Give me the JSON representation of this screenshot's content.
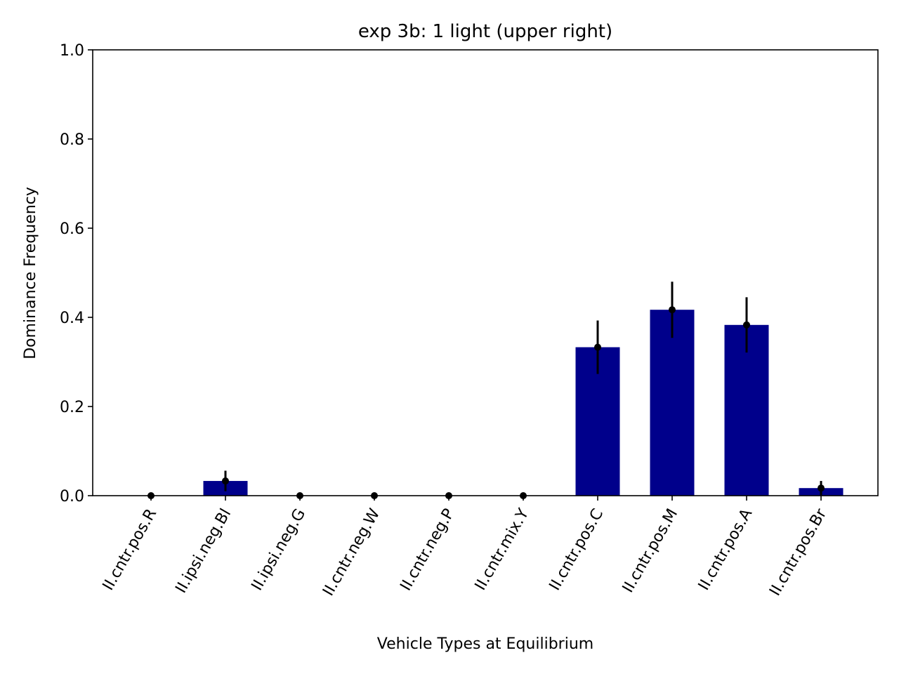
{
  "chart_data": {
    "type": "bar",
    "title": "exp 3b: 1 light (upper right)",
    "xlabel": "Vehicle Types at Equilibrium",
    "ylabel": "Dominance Frequency",
    "ylim": [
      0,
      1.0
    ],
    "yticks": [
      "0.0",
      "0.2",
      "0.4",
      "0.6",
      "0.8",
      "1.0"
    ],
    "categories": [
      "II.cntr.pos.R",
      "II.ipsi.neg.Bl",
      "II.ipsi.neg.G",
      "II.cntr.neg.W",
      "II.cntr.neg.P",
      "II.cntr.mix.Y",
      "II.cntr.pos.C",
      "II.cntr.pos.M",
      "II.cntr.pos.A",
      "II.cntr.pos.Br"
    ],
    "values": [
      0.0,
      0.033,
      0.0,
      0.0,
      0.0,
      0.0,
      0.333,
      0.417,
      0.383,
      0.017
    ],
    "errors": [
      0.0,
      0.023,
      0.0,
      0.0,
      0.0,
      0.0,
      0.06,
      0.063,
      0.062,
      0.016
    ],
    "bar_color": "#00008b",
    "error_color": "#000000",
    "grid": false,
    "legend": "none"
  }
}
